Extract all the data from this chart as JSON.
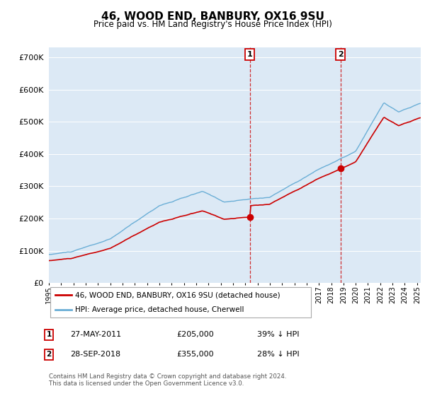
{
  "title": "46, WOOD END, BANBURY, OX16 9SU",
  "subtitle": "Price paid vs. HM Land Registry's House Price Index (HPI)",
  "plot_bg_color": "#dce9f5",
  "hpi_color": "#6aaed6",
  "price_color": "#cc0000",
  "sale1_year_f": 2011.375,
  "sale1_price": 205000,
  "sale2_year_f": 2018.75,
  "sale2_price": 355000,
  "ylabel_ticks": [
    0,
    100000,
    200000,
    300000,
    400000,
    500000,
    600000,
    700000
  ],
  "ylim": [
    0,
    730000
  ],
  "xlim_start": 1995,
  "xlim_end": 2025.3,
  "footer": "Contains HM Land Registry data © Crown copyright and database right 2024.\nThis data is licensed under the Open Government Licence v3.0.",
  "legend1": "46, WOOD END, BANBURY, OX16 9SU (detached house)",
  "legend2": "HPI: Average price, detached house, Cherwell"
}
